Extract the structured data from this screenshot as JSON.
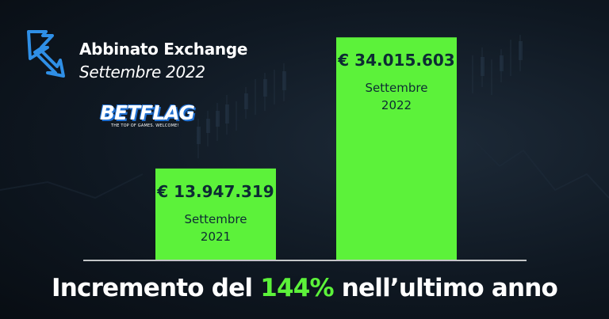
{
  "header": {
    "title": "Abbinato Exchange",
    "subtitle": "Settembre 2022"
  },
  "brand": {
    "name": "BETFLAG",
    "tagline": "THE TOP OF GAMES. WELCOME!",
    "logo_icon": "arrow-logo-icon"
  },
  "colors": {
    "background": "#0f1822",
    "bar": "#5cf23a",
    "bar_text": "#0d2b33",
    "accent": "#5cf23a",
    "logo_blue": "#1f6fd1",
    "axis": "#ffffff"
  },
  "chart_data": {
    "type": "bar",
    "categories": [
      "Settembre 2021",
      "Settembre 2022"
    ],
    "values": [
      13947319,
      34015603
    ],
    "value_labels": [
      "€ 13.947.319",
      "€ 34.015.603"
    ],
    "category_lines": [
      [
        "Settembre",
        "2021"
      ],
      [
        "Settembre",
        "2022"
      ]
    ],
    "ylim": [
      0,
      36100000
    ],
    "grid": false,
    "legend": "none"
  },
  "footer": {
    "prefix": "Incremento del ",
    "highlight": "144%",
    "suffix": " nell’ultimo anno"
  }
}
